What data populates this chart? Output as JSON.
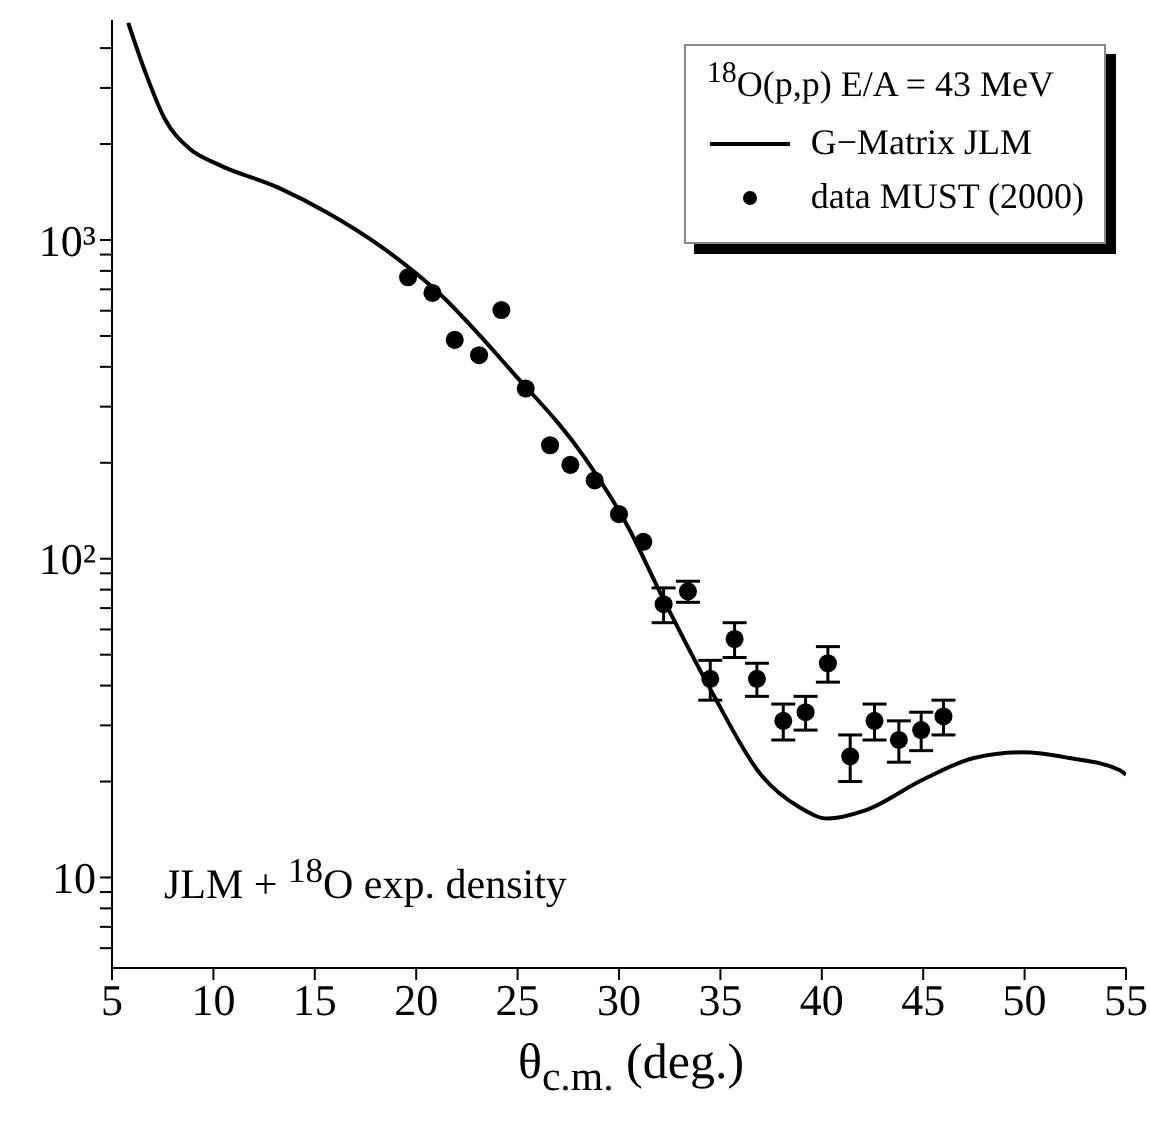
{
  "chart_data": {
    "type": "line",
    "legend_title": "$^{18}$O(p,p)  E/A = 43 MeV",
    "xlabel": "θ$_{c.m.}$ (deg.)",
    "annotations": [
      "JLM + $^{18}$O exp. density"
    ],
    "log": "y",
    "grid": false,
    "legend": "top right",
    "xlim": [
      5,
      55
    ],
    "xticks": [
      5,
      10,
      15,
      20,
      25,
      30,
      35,
      40,
      45,
      50,
      55
    ],
    "ylim": [
      5.2,
      4900
    ],
    "yticks": [
      {
        "value": 6,
        "label": null
      },
      {
        "value": 7,
        "label": null
      },
      {
        "value": 8,
        "label": null
      },
      {
        "value": 9,
        "label": null
      },
      10,
      {
        "value": 20,
        "label": null
      },
      {
        "value": 30,
        "label": null
      },
      {
        "value": 40,
        "label": null
      },
      {
        "value": 50,
        "label": null
      },
      {
        "value": 60,
        "label": null
      },
      {
        "value": 70,
        "label": null
      },
      {
        "value": 80,
        "label": null
      },
      {
        "value": 90,
        "label": null
      },
      {
        "value": 100,
        "label": "10²"
      },
      {
        "value": 200,
        "label": null
      },
      {
        "value": 300,
        "label": null
      },
      {
        "value": 400,
        "label": null
      },
      {
        "value": 500,
        "label": null
      },
      {
        "value": 600,
        "label": null
      },
      {
        "value": 700,
        "label": null
      },
      {
        "value": 800,
        "label": null
      },
      {
        "value": 900,
        "label": null
      },
      {
        "value": 1000,
        "label": "10³"
      },
      {
        "value": 2000,
        "label": null
      },
      {
        "value": 3000,
        "label": null
      },
      {
        "value": 4000,
        "label": null
      }
    ],
    "series": [
      {
        "name": "G−Matrix JLM",
        "color": "#000000",
        "line_style": "solid",
        "marker": "none",
        "x": [
          5.8,
          6.6,
          7.6,
          8.8,
          10.2,
          13.2,
          15.6,
          18.2,
          21.1,
          24.7,
          28.3,
          30.5,
          32.0,
          34.6,
          37.0,
          38.9,
          40.3,
          42.1,
          45.0,
          47.5,
          49.9,
          52.2,
          54.7,
          55
        ],
        "values": [
          4800,
          3420,
          2400,
          1940,
          1730,
          1460,
          1220,
          960,
          683,
          388,
          208,
          124,
          79,
          38,
          21,
          16.6,
          15.3,
          16.2,
          20.3,
          23.7,
          24.7,
          23.7,
          21.7,
          21
        ]
      },
      {
        "name": "data MUST (2000)",
        "type": "scatter",
        "color": "#000000",
        "marker": "circle",
        "x": [
          19.6,
          20.8,
          21.9,
          23.1,
          24.2,
          25.4,
          26.6,
          27.6,
          28.8,
          30.0,
          31.2,
          32.2,
          33.4,
          34.5,
          35.7,
          36.8,
          38.1,
          39.2,
          40.3,
          41.4,
          42.6,
          43.8,
          44.9,
          46.0
        ],
        "values": [
          764,
          682,
          486,
          435,
          603,
          342,
          227,
          197,
          176,
          138,
          113,
          72,
          79,
          42,
          56,
          42,
          31,
          33,
          47,
          24,
          31,
          27,
          29,
          32
        ],
        "errors": [
          null,
          null,
          null,
          null,
          null,
          null,
          null,
          null,
          null,
          null,
          null,
          9,
          6,
          6,
          7,
          5,
          4,
          4,
          6,
          4,
          4,
          4,
          4,
          4
        ]
      }
    ]
  }
}
